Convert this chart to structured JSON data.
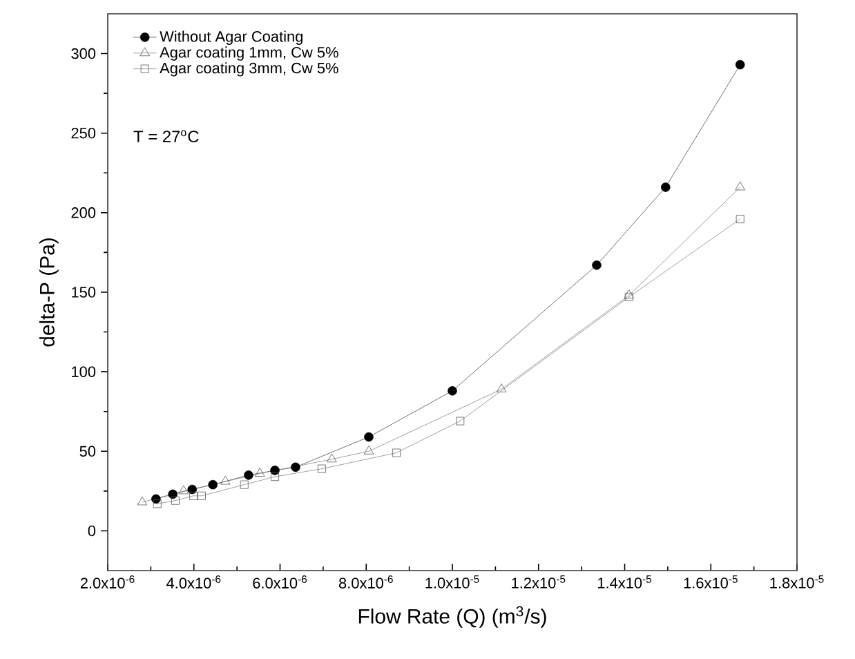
{
  "chart_data": {
    "type": "line",
    "xlabel": "Flow Rate (Q) (m$^{3}$/s)",
    "ylabel": "delta-P (Pa)",
    "annotations": [
      "T = 27$^{o}$C"
    ],
    "xlim": [
      2e-06,
      1.8e-05
    ],
    "ylim": [
      -25,
      325
    ],
    "xticks": [
      {
        "value": 2e-06,
        "label": "2.0x10$^{-6}$"
      },
      {
        "value": 4e-06,
        "label": "4.0x10$^{-6}$"
      },
      {
        "value": 6e-06,
        "label": "6.0x10$^{-6}$"
      },
      {
        "value": 8e-06,
        "label": "8.0x10$^{-6}$"
      },
      {
        "value": 1e-05,
        "label": "1.0x10$^{-5}$"
      },
      {
        "value": 1.2e-05,
        "label": "1.2x10$^{-5}$"
      },
      {
        "value": 1.4e-05,
        "label": "1.4x10$^{-5}$"
      },
      {
        "value": 1.6e-05,
        "label": "1.6x10$^{-5}$"
      },
      {
        "value": 1.8e-05,
        "label": "1.8x10$^{-5}$"
      }
    ],
    "yticks": [
      0,
      50,
      100,
      150,
      200,
      250,
      300
    ],
    "legend": "top left",
    "grid": false,
    "series": [
      {
        "name": "Without Agar Coating",
        "color": "#000000",
        "marker": "circle",
        "x": [
          3.12e-06,
          3.51e-06,
          3.96e-06,
          4.44e-06,
          5.27e-06,
          5.88e-06,
          6.36e-06,
          8.06e-06,
          1e-05,
          1.335e-05,
          1.495e-05,
          1.668e-05
        ],
        "values": [
          20,
          23,
          26,
          29,
          35,
          38,
          40,
          59,
          88,
          167,
          216,
          293
        ]
      },
      {
        "name": "Agar coating 1mm, Cw 5%",
        "color": "#555555",
        "marker": "triangle",
        "x": [
          2.8e-06,
          3.76e-06,
          4.73e-06,
          5.53e-06,
          7.2e-06,
          8.06e-06,
          1.114e-05,
          1.41e-05,
          1.668e-05
        ],
        "values": [
          18,
          25,
          31,
          36,
          45,
          50,
          89,
          148,
          216
        ]
      },
      {
        "name": "Agar coating 3mm, Cw 5%",
        "color": "#555555",
        "marker": "square",
        "x": [
          3.15e-06,
          3.57e-06,
          3.99e-06,
          4.18e-06,
          5.17e-06,
          5.88e-06,
          6.97e-06,
          8.7e-06,
          1.018e-05,
          1.41e-05,
          1.668e-05
        ],
        "values": [
          17,
          19,
          22,
          22,
          29,
          34,
          39,
          49,
          69,
          147,
          196
        ]
      }
    ]
  }
}
